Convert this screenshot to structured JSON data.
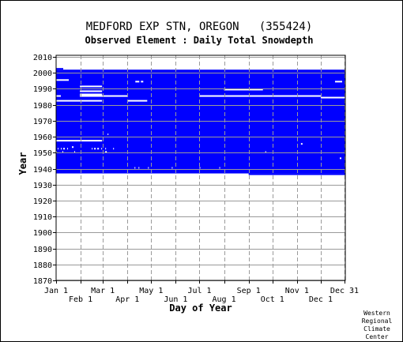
{
  "chart_data": {
    "type": "heatmap",
    "title": "MEDFORD EXP STN, OREGON   (355424)",
    "subtitle": "Observed Element : Daily Total Snowdepth",
    "xlabel": "Day of Year",
    "ylabel": "Year",
    "credit": [
      "Western",
      "Regional",
      "Climate",
      "Center"
    ],
    "x_ticks_top_row": [
      {
        "label": "Jan 1",
        "day": 1
      },
      {
        "label": "Mar 1",
        "day": 60
      },
      {
        "label": "May 1",
        "day": 121
      },
      {
        "label": "Jul 1",
        "day": 182
      },
      {
        "label": "Sep 1",
        "day": 244
      },
      {
        "label": "Nov 1",
        "day": 305
      },
      {
        "label": "Dec 31",
        "day": 365
      }
    ],
    "x_ticks_bottom_row": [
      {
        "label": "Feb 1",
        "day": 32
      },
      {
        "label": "Apr 1",
        "day": 91
      },
      {
        "label": "Jun 1",
        "day": 152
      },
      {
        "label": "Aug 1",
        "day": 213
      },
      {
        "label": "Oct 1",
        "day": 274
      },
      {
        "label": "Dec 1",
        "day": 335
      }
    ],
    "y_ticks": [
      1870,
      1880,
      1890,
      1900,
      1910,
      1920,
      1930,
      1940,
      1950,
      1960,
      1970,
      1980,
      1990,
      2000,
      2010
    ],
    "xlim": [
      1,
      366
    ],
    "ylim": [
      1870,
      2011
    ],
    "grid": true,
    "data_color": "#0000ff",
    "missing_color": "#ffffff",
    "coverage_blocks": [
      {
        "day_start": 1,
        "day_end": 366,
        "year_start": 1937,
        "year_end": 2002
      },
      {
        "day_start": 1,
        "day_end": 10,
        "year_start": 2002,
        "year_end": 2003
      },
      {
        "day_start": 244,
        "day_end": 366,
        "year_start": 1936,
        "year_end": 1937
      }
    ],
    "missing_segments": [
      {
        "year": 1995,
        "day_start": 1,
        "day_end": 17
      },
      {
        "year": 1994,
        "day_start": 101,
        "day_end": 106
      },
      {
        "year": 1994,
        "day_start": 108,
        "day_end": 111
      },
      {
        "year": 1994,
        "day_start": 353,
        "day_end": 362
      },
      {
        "year": 1991,
        "day_start": 31,
        "day_end": 59
      },
      {
        "year": 1989,
        "day_start": 213,
        "day_end": 262
      },
      {
        "year": 1988,
        "day_start": 31,
        "day_end": 59
      },
      {
        "year": 1986,
        "day_start": 31,
        "day_end": 59
      },
      {
        "year": 1985,
        "day_start": 1,
        "day_end": 7
      },
      {
        "year": 1985,
        "day_start": 31,
        "day_end": 91
      },
      {
        "year": 1985,
        "day_start": 182,
        "day_end": 335
      },
      {
        "year": 1984,
        "day_start": 335,
        "day_end": 366
      },
      {
        "year": 1982,
        "day_start": 1,
        "day_end": 59
      },
      {
        "year": 1982,
        "day_start": 91,
        "day_end": 116
      },
      {
        "year": 1957,
        "day_start": 1,
        "day_end": 59
      },
      {
        "year": 1961,
        "day_start": 66,
        "day_end": 67
      },
      {
        "year": 1955,
        "day_start": 310,
        "day_end": 312
      },
      {
        "year": 1953,
        "day_start": 21,
        "day_end": 23
      },
      {
        "year": 1952,
        "day_start": 3,
        "day_end": 4
      },
      {
        "year": 1952,
        "day_start": 7,
        "day_end": 8
      },
      {
        "year": 1952,
        "day_start": 10,
        "day_end": 12
      },
      {
        "year": 1952,
        "day_start": 15,
        "day_end": 16
      },
      {
        "year": 1952,
        "day_start": 46,
        "day_end": 47
      },
      {
        "year": 1952,
        "day_start": 49,
        "day_end": 51
      },
      {
        "year": 1952,
        "day_start": 53,
        "day_end": 55
      },
      {
        "year": 1952,
        "day_start": 58,
        "day_end": 59
      },
      {
        "year": 1952,
        "day_start": 63,
        "day_end": 64
      },
      {
        "year": 1952,
        "day_start": 73,
        "day_end": 74
      },
      {
        "year": 1950,
        "day_start": 1,
        "day_end": 2
      },
      {
        "year": 1950,
        "day_start": 9,
        "day_end": 10
      },
      {
        "year": 1950,
        "day_start": 24,
        "day_end": 25
      },
      {
        "year": 1950,
        "day_start": 63,
        "day_end": 65
      },
      {
        "year": 1950,
        "day_start": 265,
        "day_end": 266
      },
      {
        "year": 1946,
        "day_start": 359,
        "day_end": 361
      },
      {
        "year": 1940,
        "day_start": 100,
        "day_end": 101
      },
      {
        "year": 1940,
        "day_start": 105,
        "day_end": 106
      },
      {
        "year": 1940,
        "day_start": 117,
        "day_end": 118
      },
      {
        "year": 1940,
        "day_start": 147,
        "day_end": 148
      },
      {
        "year": 1940,
        "day_start": 182,
        "day_end": 183
      },
      {
        "year": 1940,
        "day_start": 207,
        "day_end": 208
      }
    ]
  }
}
